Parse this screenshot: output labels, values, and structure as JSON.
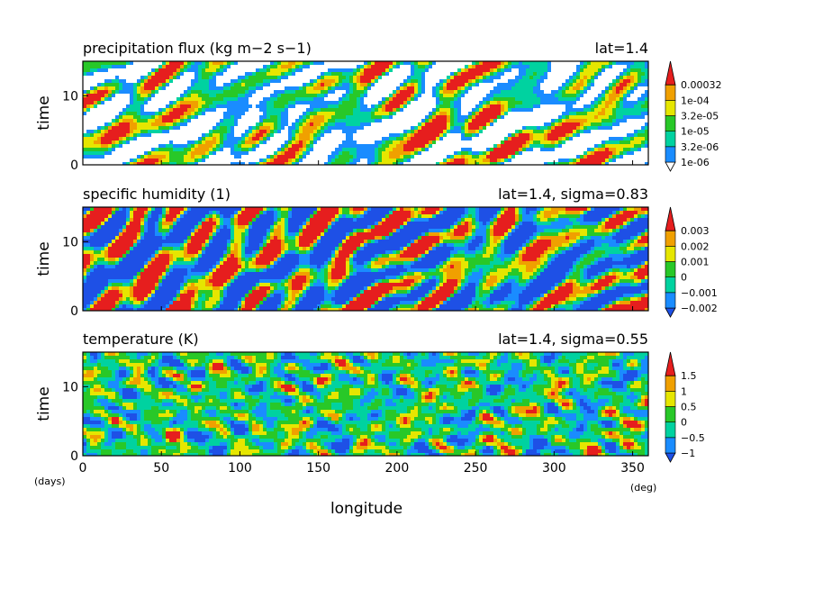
{
  "figure": {
    "xlabel": "longitude",
    "ylabel": "time",
    "x_unit": "(deg)",
    "y_unit": "(days)",
    "x_ticks": [
      0,
      50,
      100,
      150,
      200,
      250,
      300,
      350
    ],
    "y_ticks": [
      0,
      10
    ],
    "colors": [
      "#1a8cff",
      "#00d2a0",
      "#28c828",
      "#e6e600",
      "#f0a000",
      "#e61e1e"
    ],
    "low_color": "#1e50e6",
    "under_color": "#ffffff"
  },
  "chart_data": [
    {
      "type": "heatmap",
      "title": "precipitation flux (kg m−2 s−1)",
      "subtitle": "lat=1.4",
      "xlabel": "longitude",
      "ylabel": "time",
      "xlim": [
        0,
        360
      ],
      "ylim": [
        0,
        15
      ],
      "colorbar_labels": [
        "1e-06",
        "3.2e-06",
        "1e-05",
        "3.2e-05",
        "1e-04",
        "0.00032"
      ],
      "legend": "right"
    },
    {
      "type": "heatmap",
      "title": "specific humidity (1)",
      "subtitle": "lat=1.4, sigma=0.83",
      "xlabel": "longitude",
      "ylabel": "time",
      "xlim": [
        0,
        360
      ],
      "ylim": [
        0,
        15
      ],
      "colorbar_labels": [
        "−0.002",
        "−0.001",
        "0",
        "0.001",
        "0.002",
        "0.003"
      ],
      "legend": "right"
    },
    {
      "type": "heatmap",
      "title": "temperature (K)",
      "subtitle": "lat=1.4, sigma=0.55",
      "xlabel": "longitude",
      "ylabel": "time",
      "xlim": [
        0,
        360
      ],
      "ylim": [
        0,
        15
      ],
      "colorbar_labels": [
        "−1",
        "−0.5",
        "0",
        "0.5",
        "1",
        "1.5"
      ],
      "legend": "right"
    }
  ]
}
